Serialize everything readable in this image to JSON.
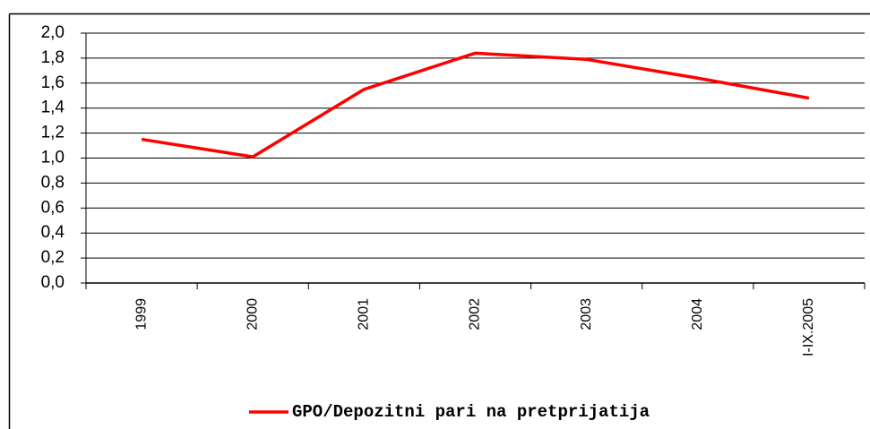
{
  "chart_data": {
    "type": "line",
    "categories": [
      "1999",
      "2000",
      "2001",
      "2002",
      "2003",
      "2004",
      "I-IX.2005"
    ],
    "series": [
      {
        "name": "GPO/Depozitni pari na pretprijatija",
        "color": "#ff0000",
        "values": [
          1.15,
          1.01,
          1.55,
          1.84,
          1.79,
          1.64,
          1.48
        ]
      }
    ],
    "ylim": [
      0,
      2
    ],
    "yticks": [
      {
        "value": 0,
        "label": "0,0"
      },
      {
        "value": 0.2,
        "label": "0,2"
      },
      {
        "value": 0.4,
        "label": "0,4"
      },
      {
        "value": 0.6,
        "label": "0,6"
      },
      {
        "value": 0.8,
        "label": "0,8"
      },
      {
        "value": 1,
        "label": "1,0"
      },
      {
        "value": 1.2,
        "label": "1,2"
      },
      {
        "value": 1.4,
        "label": "1,4"
      },
      {
        "value": 1.6,
        "label": "1,6"
      },
      {
        "value": 1.8,
        "label": "1,8"
      },
      {
        "value": 2,
        "label": "2,0"
      }
    ],
    "grid": true,
    "legend": "bottom"
  }
}
